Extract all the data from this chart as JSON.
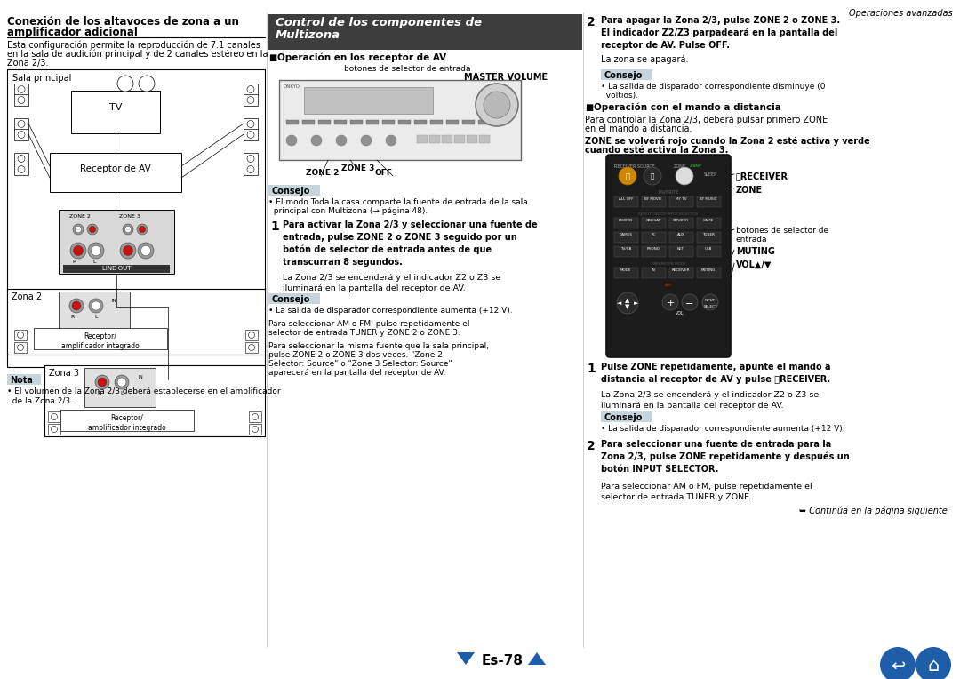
{
  "page_bg": "#ffffff",
  "header_text": "Operaciones avanzadas",
  "footer_page": "Es-78",
  "left_title": "Conexion de los altavoces de zona a un amplificador adicional",
  "left_body": "Esta configuracion permite la reproduccion de 7.1 canales\nen la sala de audicion principal y de 2 canales estereo en la\nZona 2/3.",
  "note_title": "Nota",
  "note_body": "El volumen de la Zona 2/3 debera establecerse en el amplificador\nde la Zona 2/3.",
  "section_header_bg": "#3d3d3d",
  "section_header_text": "#ffffff",
  "consejo_bg": "#c8d4dc",
  "nota_bg": "#c8d4dc",
  "section_title_line1": "Control de los componentes de",
  "section_title_line2": "Multizona",
  "subsec1": "Operacion en los receptor de AV",
  "label_botones": "botones de selector de entrada",
  "label_master": "MASTER VOLUME",
  "label_zone2": "ZONE 2",
  "label_zone3": "ZONE 3",
  "label_off": "OFF",
  "consejo1_title": "Consejo",
  "consejo1_body": "El modo Toda la casa comparte la fuente de entrada de la sala\nprincipal con Multizona (pagina 48).",
  "step1_text": "Para activar la Zona 2/3 y seleccionar una fuente de\nentrada, pulse ZONE 2 o ZONE 3 seguido por un\nboton de selector de entrada antes de que\ntranscurran 8 segundos.",
  "step1_body": "La Zona 2/3 se encendera y el indicador Z2 o Z3 se\niluminara en la pantalla del receptor de AV.",
  "consejo2_title": "Consejo",
  "consejo2_body": "La salida de disparador correspondiente aumenta (+12 V).",
  "consejo2_body2": "Para seleccionar AM o FM, pulse repetidamente el\nselector de entrada TUNER y ZONE 2 o ZONE 3.",
  "consejo2_body3": "Para seleccionar la misma fuente que la sala principal,\npulse ZONE 2 o ZONE 3 dos veces. Zone 2\nSelector: Source o Zone 3 Selector: Source\naparecera en la pantalla del receptor de AV.",
  "step2_text": "Para apagar la Zona 2/3, pulse ZONE 2 o ZONE 3.\nEl indicador Z2/Z3 parpadeara en la pantalla del\nreceptor de AV. Pulse OFF.",
  "step2_body": "La zona se apagara.",
  "consejo3_title": "Consejo",
  "consejo3_body": "La salida de disparador correspondiente disminuye (0\nvoltios).",
  "subsec2": "Operacion con el mando a distancia",
  "remote_body1": "Para controlar la Zona 2/3, debera pulsar primero ZONE\nen el mando a distancia.",
  "remote_body2": "ZONE se volvera rojo cuando la Zona 2 este activa y verde\ncuando este activa la Zona 3.",
  "label_receiver": "RECEIVER",
  "label_zone": "ZONE",
  "label_botones2a": "botones de selector de",
  "label_botones2b": "entrada",
  "label_muting": "MUTING",
  "label_vol": "VOL",
  "step1b_text": "Pulse ZONE repetidamente, apunte el mando a\ndistancia al receptor de AV y pulse RECEIVER.",
  "step1b_body": "La Zona 2/3 se encendera y el indicador Z2 o Z3 se\niluminara en la pantalla del receptor de AV.",
  "consejo4_title": "Consejo",
  "consejo4_body": "La salida de disparador correspondiente aumenta (+12 V).",
  "step2b_text": "Para seleccionar una fuente de entrada para la\nZona 2/3, pulse ZONE repetidamente y despues un\nboton INPUT SELECTOR.",
  "step2b_body": "Para seleccionar AM o FM, pulse repetidamente el\nselector de entrada TUNER y ZONE.",
  "continua": "Continua en la pagina siguiente",
  "footer_blue": "#1e5ea8",
  "divider_color": "#aaaaaa"
}
